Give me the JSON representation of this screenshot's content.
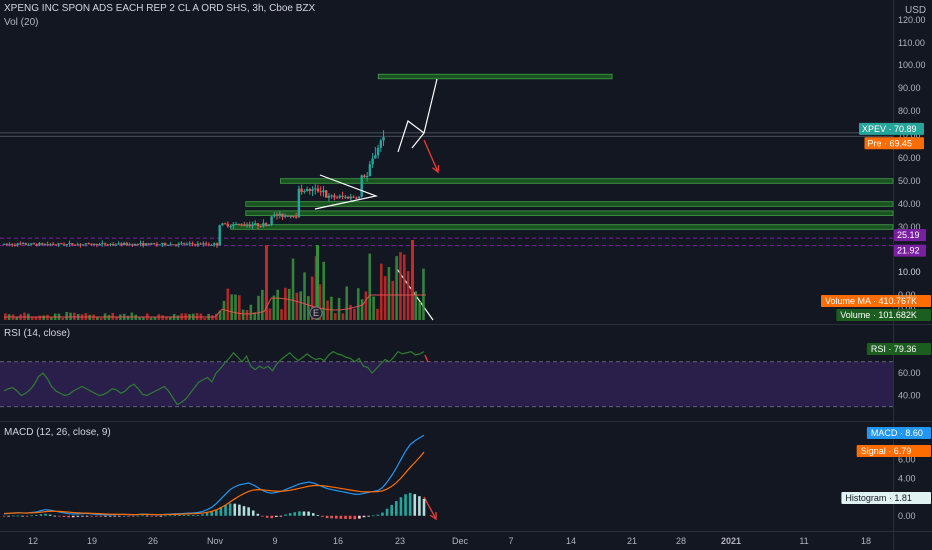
{
  "header": {
    "title": "XPENG INC SPON ADS EACH REP 2 CL A ORD SHS, 3h, Cboe BZX",
    "vol_label": "Vol (20)",
    "rsi_label": "RSI (14, close)",
    "macd_label": "MACD (12, 26, close, 9)",
    "currency": "USD"
  },
  "colors": {
    "background": "#131722",
    "up": "#26a69a",
    "down": "#ef5350",
    "vol_up": "#388e3c",
    "vol_down": "#c62828",
    "zone": "#1b5e20",
    "zone_border": "#43a047",
    "rsi_line": "#2e7d32",
    "rsi_band": "#2a1f4a",
    "macd": "#2196f3",
    "signal": "#ff6d00",
    "purple_level": "#7b1fa2",
    "drawing": "#ffffff",
    "arrow": "#e53935"
  },
  "chart_data": [
    {
      "type": "candlestick",
      "title": "XPENG INC SPON ADS EACH REP 2 CL A ORD SHS, 3h, Cboe BZX",
      "unit": "USD",
      "x_tick_labels": [
        "12",
        "19",
        "26",
        "Nov",
        "9",
        "16",
        "23",
        "Dec",
        "7",
        "14",
        "21",
        "28",
        "2021",
        "11",
        "18"
      ],
      "y_ticks": [
        120,
        110,
        100,
        90,
        80,
        70,
        60,
        50,
        40,
        30,
        20,
        10,
        0
      ],
      "y_tick_labels": [
        "120.00",
        "110.00",
        "100.00",
        "90.00",
        "80.00",
        "70.00",
        "60.00",
        "50.00",
        "40.00",
        "30.00",
        "20.00",
        "10.00",
        "0.00"
      ],
      "ylim": [
        0,
        125
      ],
      "close_segments": [
        {
          "from": 0,
          "to": 0.24,
          "value": 22.5
        },
        {
          "from": 0.24,
          "to": 0.3,
          "value": 31
        },
        {
          "from": 0.3,
          "to": 0.33,
          "value": 35
        },
        {
          "from": 0.33,
          "to": 0.36,
          "value": 46
        },
        {
          "from": 0.36,
          "to": 0.4,
          "value": 43
        },
        {
          "from": 0.4,
          "to": 0.41,
          "value": 52
        },
        {
          "from": 0.41,
          "to": 0.43,
          "value": 72
        }
      ],
      "price_tags": [
        {
          "label": "XPEV",
          "value": "70.89",
          "price": 70.89,
          "color": "#26a69a"
        },
        {
          "label": "Pre",
          "value": "69.45",
          "price": 69.45,
          "color": "#ff6d00"
        },
        {
          "label": "",
          "value": "25.19",
          "price": 25.19,
          "color": "#7b1fa2"
        },
        {
          "label": "",
          "value": "21.92",
          "price": 21.92,
          "color": "#7b1fa2"
        }
      ],
      "horizontal_levels": [
        25.19,
        21.92,
        70.89,
        69.45
      ],
      "zones": [
        {
          "low": 94,
          "high": 96,
          "x_from": 0.421,
          "x_to": 0.684
        },
        {
          "low": 49,
          "high": 51,
          "x_from": 0.311,
          "x_to": 1.0
        },
        {
          "low": 39,
          "high": 41,
          "x_from": 0.272,
          "x_to": 1.0
        },
        {
          "low": 35,
          "high": 37,
          "x_from": 0.272,
          "x_to": 1.0
        },
        {
          "low": 29,
          "high": 31,
          "x_from": 0.255,
          "x_to": 1.0
        }
      ]
    },
    {
      "type": "bar",
      "title": "Vol (20)",
      "series_tags": [
        {
          "label": "Volume MA",
          "value": "410.767K",
          "color": "#ff6d00"
        },
        {
          "label": "Volume",
          "value": "101.682K",
          "color": "#1b5e20"
        }
      ],
      "tick_labels": [
        "10.00",
        "0.00"
      ]
    },
    {
      "type": "line",
      "title": "RSI (14, close)",
      "ylim": [
        20,
        100
      ],
      "y_ticks": [
        60,
        40
      ],
      "y_tick_labels": [
        "60.00",
        "40.00"
      ],
      "band": [
        30,
        70
      ],
      "last_value_label": "RSI",
      "last_value": "79.36",
      "values": [
        44,
        46,
        47,
        44,
        40,
        42,
        45,
        50,
        57,
        60,
        55,
        48,
        44,
        42,
        40,
        41,
        44,
        46,
        48,
        46,
        44,
        42,
        40,
        41,
        43,
        46,
        45,
        42,
        44,
        48,
        50,
        46,
        41,
        40,
        42,
        44,
        46,
        48,
        44,
        38,
        32,
        34,
        37,
        42,
        47,
        52,
        54,
        56,
        52,
        60,
        64,
        69,
        73,
        78,
        74,
        70,
        75,
        66,
        63,
        66,
        64,
        66,
        62,
        68,
        72,
        75,
        78,
        74,
        71,
        74,
        77,
        74,
        72,
        73,
        71,
        76,
        79,
        77,
        76,
        74,
        73,
        70,
        73,
        66,
        65,
        60,
        64,
        68,
        72,
        70,
        74,
        79,
        77,
        78,
        79,
        76,
        77,
        79
      ]
    },
    {
      "type": "line",
      "title": "MACD (12, 26, close, 9)",
      "ylim": [
        -1.2,
        9.8
      ],
      "y_ticks": [
        6,
        4,
        2,
        0
      ],
      "y_tick_labels": [
        "6.00",
        "4.00",
        "2.00",
        "0.00"
      ],
      "series": [
        {
          "name": "MACD",
          "last_value": "8.60",
          "color": "#2196f3",
          "values": [
            0.2,
            0.25,
            0.3,
            0.32,
            0.3,
            0.28,
            0.35,
            0.4,
            0.55,
            0.65,
            0.6,
            0.5,
            0.4,
            0.3,
            0.22,
            0.18,
            0.2,
            0.22,
            0.25,
            0.2,
            0.15,
            0.12,
            0.1,
            0.1,
            0.12,
            0.14,
            0.15,
            0.12,
            0.1,
            0.14,
            0.18,
            0.16,
            0.12,
            0.1,
            0.12,
            0.15,
            0.18,
            0.2,
            0.22,
            0.25,
            0.28,
            0.3,
            0.35,
            0.45,
            0.65,
            0.9,
            1.3,
            1.8,
            2.3,
            2.8,
            3.1,
            3.3,
            3.4,
            3.5,
            3.3,
            3.0,
            2.7,
            2.5,
            2.4,
            2.5,
            2.6,
            2.8,
            3.0,
            3.2,
            3.4,
            3.5,
            3.6,
            3.5,
            3.3,
            3.1,
            2.9,
            2.8,
            2.7,
            2.6,
            2.5,
            2.4,
            2.3,
            2.3,
            2.4,
            2.5,
            2.6,
            2.7,
            3.0,
            3.6,
            4.3,
            5.1,
            6.0,
            6.9,
            7.6,
            8.0,
            8.3,
            8.6
          ]
        },
        {
          "name": "Signal",
          "last_value": "6.79",
          "color": "#ff6d00",
          "values": [
            0.25,
            0.26,
            0.28,
            0.3,
            0.3,
            0.3,
            0.31,
            0.33,
            0.38,
            0.44,
            0.48,
            0.49,
            0.47,
            0.43,
            0.39,
            0.34,
            0.31,
            0.29,
            0.28,
            0.26,
            0.24,
            0.22,
            0.19,
            0.17,
            0.16,
            0.15,
            0.15,
            0.14,
            0.13,
            0.13,
            0.14,
            0.14,
            0.14,
            0.13,
            0.13,
            0.13,
            0.14,
            0.15,
            0.16,
            0.18,
            0.2,
            0.22,
            0.25,
            0.29,
            0.36,
            0.47,
            0.63,
            0.86,
            1.15,
            1.48,
            1.81,
            2.11,
            2.37,
            2.6,
            2.74,
            2.79,
            2.77,
            2.72,
            2.66,
            2.63,
            2.62,
            2.66,
            2.72,
            2.82,
            2.93,
            3.04,
            3.15,
            3.22,
            3.24,
            3.21,
            3.15,
            3.08,
            3.0,
            2.92,
            2.84,
            2.75,
            2.67,
            2.6,
            2.56,
            2.55,
            2.56,
            2.58,
            2.66,
            2.85,
            3.14,
            3.53,
            4.02,
            4.6,
            5.16,
            5.69,
            6.21,
            6.79
          ]
        }
      ],
      "histogram": {
        "name": "Histogram",
        "last_value": "1.81",
        "color": "#26a69a",
        "values": [
          -0.05,
          -0.01,
          0.02,
          0.02,
          0,
          -0.02,
          0.04,
          0.07,
          0.17,
          0.21,
          0.12,
          0.01,
          -0.07,
          -0.13,
          -0.17,
          -0.16,
          -0.11,
          -0.07,
          -0.03,
          -0.06,
          -0.09,
          -0.1,
          -0.09,
          -0.07,
          -0.04,
          -0.01,
          0,
          -0.02,
          -0.03,
          0.01,
          0.04,
          0.02,
          -0.02,
          -0.03,
          -0.01,
          0.02,
          0.04,
          0.05,
          0.06,
          0.07,
          0.08,
          0.08,
          0.1,
          0.16,
          0.29,
          0.43,
          0.67,
          0.94,
          1.15,
          1.32,
          1.29,
          1.19,
          1.03,
          0.9,
          0.56,
          0.21,
          -0.07,
          -0.22,
          -0.26,
          -0.13,
          -0.02,
          0.14,
          0.28,
          0.38,
          0.47,
          0.46,
          0.45,
          0.28,
          0.06,
          -0.11,
          -0.25,
          -0.28,
          -0.3,
          -0.32,
          -0.34,
          -0.35,
          -0.37,
          -0.3,
          -0.16,
          -0.05,
          0.04,
          0.12,
          0.34,
          0.75,
          1.16,
          1.57,
          1.98,
          2.3,
          2.44,
          2.31,
          2.09,
          1.81
        ]
      }
    }
  ]
}
